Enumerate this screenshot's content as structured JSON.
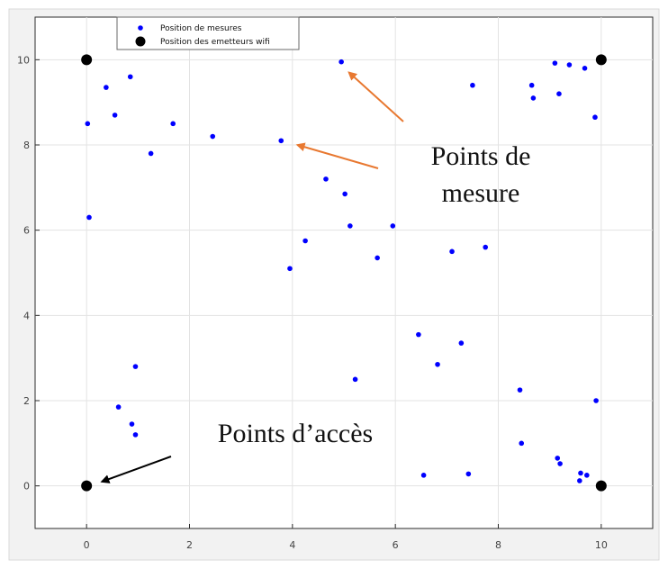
{
  "chart_data": {
    "type": "scatter",
    "title": "",
    "xlabel": "",
    "ylabel": "",
    "xlim": [
      -1,
      11
    ],
    "ylim": [
      -1,
      11
    ],
    "x_ticks": [
      "0",
      "2",
      "4",
      "6",
      "8",
      "10"
    ],
    "y_ticks": [
      "0",
      "2",
      "4",
      "6",
      "8",
      "10"
    ],
    "grid": true,
    "legend_position": "top-left",
    "series": [
      {
        "name": "Position de mesures",
        "color": "#0000ff",
        "marker": "dot-small",
        "points": [
          [
            0.02,
            8.5
          ],
          [
            0.05,
            6.3
          ],
          [
            0.38,
            9.35
          ],
          [
            0.55,
            8.7
          ],
          [
            0.85,
            9.6
          ],
          [
            1.25,
            7.8
          ],
          [
            1.68,
            8.5
          ],
          [
            2.45,
            8.2
          ],
          [
            3.78,
            8.1
          ],
          [
            4.95,
            9.95
          ],
          [
            4.65,
            7.2
          ],
          [
            5.02,
            6.85
          ],
          [
            5.12,
            6.1
          ],
          [
            4.25,
            5.75
          ],
          [
            3.95,
            5.1
          ],
          [
            5.65,
            5.35
          ],
          [
            5.95,
            6.1
          ],
          [
            7.1,
            5.5
          ],
          [
            7.75,
            5.6
          ],
          [
            7.5,
            9.4
          ],
          [
            8.65,
            9.4
          ],
          [
            8.68,
            9.1
          ],
          [
            9.1,
            9.92
          ],
          [
            9.38,
            9.88
          ],
          [
            9.68,
            9.8
          ],
          [
            9.18,
            9.2
          ],
          [
            9.88,
            8.65
          ],
          [
            6.45,
            3.55
          ],
          [
            7.28,
            3.35
          ],
          [
            6.82,
            2.85
          ],
          [
            5.22,
            2.5
          ],
          [
            8.42,
            2.25
          ],
          [
            9.9,
            2.0
          ],
          [
            8.45,
            1.0
          ],
          [
            9.15,
            0.65
          ],
          [
            9.2,
            0.52
          ],
          [
            9.6,
            0.3
          ],
          [
            9.72,
            0.25
          ],
          [
            9.58,
            0.12
          ],
          [
            6.55,
            0.25
          ],
          [
            7.42,
            0.28
          ],
          [
            0.95,
            2.8
          ],
          [
            0.62,
            1.85
          ],
          [
            0.88,
            1.45
          ],
          [
            0.95,
            1.2
          ]
        ]
      },
      {
        "name": "Position des emetteurs wifi",
        "color": "#000000",
        "marker": "dot-large",
        "points": [
          [
            0,
            10
          ],
          [
            10,
            10
          ],
          [
            0,
            0
          ],
          [
            10,
            0
          ]
        ]
      }
    ],
    "annotations": [
      {
        "lines": [
          "Points de",
          "mesure"
        ],
        "color": "#e87830",
        "arrow_targets": [
          [
            5.1,
            9.7
          ],
          [
            4.1,
            8.0
          ]
        ]
      },
      {
        "lines": [
          "Points d’accès"
        ],
        "color": "#000000",
        "arrow_targets": [
          [
            0.3,
            0.1
          ]
        ]
      }
    ]
  }
}
